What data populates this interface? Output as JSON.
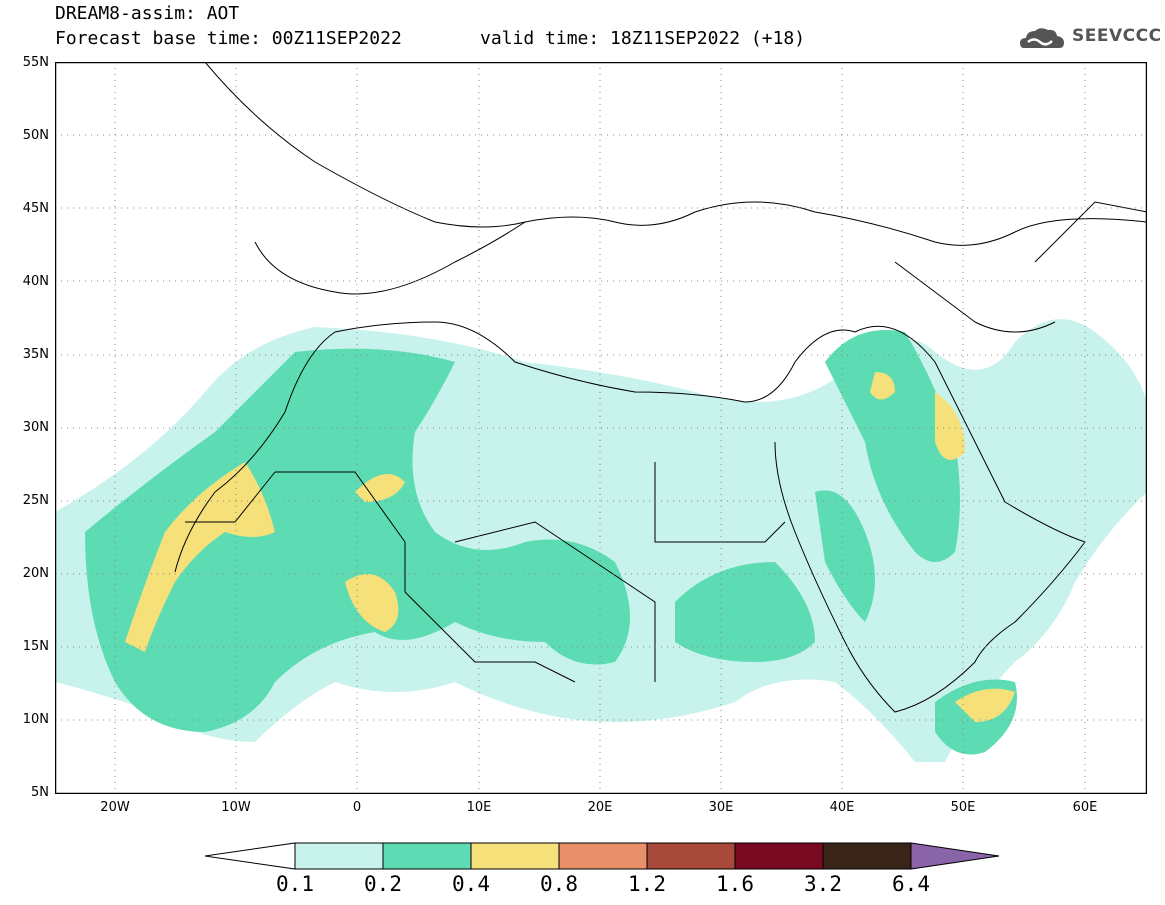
{
  "header": {
    "title_line1": "DREAM8-assim: AOT",
    "title_line2": "Forecast base time: 00Z11SEP2022",
    "valid_time": "valid time: 18Z11SEP2022 (+18)"
  },
  "logo": {
    "text": "SEEVCCC"
  },
  "axes": {
    "lat_labels": [
      "55N",
      "50N",
      "45N",
      "40N",
      "35N",
      "30N",
      "25N",
      "20N",
      "15N",
      "10N",
      "5N"
    ],
    "lon_labels": [
      "20W",
      "10W",
      "0",
      "10E",
      "20E",
      "30E",
      "40E",
      "50E",
      "60E"
    ]
  },
  "legend": {
    "thresholds": [
      "0.1",
      "0.2",
      "0.4",
      "0.8",
      "1.2",
      "1.6",
      "3.2",
      "6.4"
    ],
    "colors": [
      "#ffffff",
      "#c8f2ec",
      "#5ddcb4",
      "#f5e07a",
      "#e8906a",
      "#a84a3a",
      "#7a0a22",
      "#3a2418",
      "#8a64a8"
    ]
  },
  "map": {
    "colors": {
      "low": "#c8f2ec",
      "mid": "#5ddcb4",
      "high": "#f5e07a",
      "border": "#000000",
      "grid": "#888888"
    }
  }
}
